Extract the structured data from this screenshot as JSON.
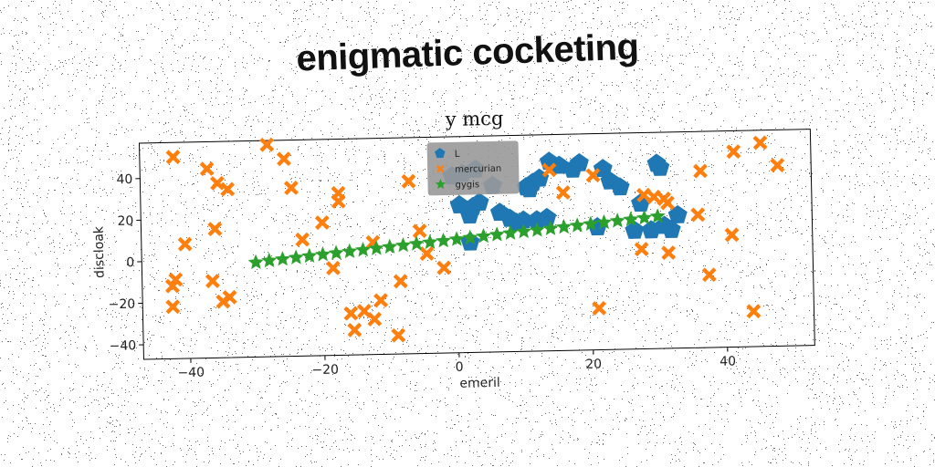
{
  "page": {
    "headline": "enigmatic cocketing"
  },
  "chart_data": {
    "type": "scatter",
    "title": "y mcg",
    "xlabel": "emeril",
    "ylabel": "discloak",
    "xlim": [
      -47,
      53
    ],
    "ylim": [
      -47,
      57
    ],
    "xticks": [
      -40,
      -20,
      0,
      20,
      40
    ],
    "yticks": [
      -40,
      -20,
      0,
      20,
      40
    ],
    "grid": false,
    "legend_position": "top-center",
    "series": [
      {
        "name": "L",
        "marker": "pentagon",
        "color": "#1f77b4",
        "points": [
          [
            -0.5,
            38
          ],
          [
            1,
            39
          ],
          [
            3,
            41
          ],
          [
            5.5,
            33
          ],
          [
            0.5,
            24
          ],
          [
            2.5,
            23
          ],
          [
            3.5,
            25
          ],
          [
            2,
            19
          ],
          [
            6.5,
            20
          ],
          [
            8,
            17
          ],
          [
            9,
            15
          ],
          [
            10,
            16
          ],
          [
            10.5,
            32
          ],
          [
            11,
            31
          ],
          [
            11.5,
            34
          ],
          [
            12.5,
            36
          ],
          [
            14,
            44
          ],
          [
            15.5,
            42
          ],
          [
            17.5,
            40
          ],
          [
            12,
            16
          ],
          [
            13.5,
            17
          ],
          [
            18.5,
            43
          ],
          [
            22,
            40
          ],
          [
            23,
            34
          ],
          [
            24.5,
            31
          ],
          [
            27.5,
            23
          ],
          [
            26.5,
            10
          ],
          [
            29,
            10
          ],
          [
            31,
            12
          ],
          [
            21,
            12
          ],
          [
            33,
            17
          ],
          [
            30,
            42
          ],
          [
            30.5,
            40
          ],
          [
            2,
            6
          ],
          [
            32,
            10
          ]
        ]
      },
      {
        "name": "mercurian",
        "marker": "x",
        "color": "#ff7f0e",
        "points": [
          [
            -42,
            50
          ],
          [
            -37,
            44
          ],
          [
            -35.5,
            37
          ],
          [
            -34,
            34
          ],
          [
            -28,
            55
          ],
          [
            -25.5,
            48
          ],
          [
            -24.5,
            34
          ],
          [
            -23,
            9
          ],
          [
            -40.5,
            8
          ],
          [
            -36,
            15
          ],
          [
            -20,
            17
          ],
          [
            -17.5,
            27
          ],
          [
            -17.5,
            31
          ],
          [
            -12.5,
            7
          ],
          [
            -7,
            36
          ],
          [
            -5.5,
            12
          ],
          [
            -4.5,
            1
          ],
          [
            -2,
            -6
          ],
          [
            -18.5,
            -5
          ],
          [
            -8.5,
            -12
          ],
          [
            -14,
            -26
          ],
          [
            -16,
            -27
          ],
          [
            -15.5,
            -35
          ],
          [
            -12.5,
            -30
          ],
          [
            -11.5,
            -21
          ],
          [
            -9,
            -38
          ],
          [
            -42,
            -9
          ],
          [
            -42.5,
            -12
          ],
          [
            -42.5,
            -22
          ],
          [
            -36.5,
            -10
          ],
          [
            -35,
            -20
          ],
          [
            -34,
            -18
          ],
          [
            14,
            40
          ],
          [
            16,
            29
          ],
          [
            20.5,
            37
          ],
          [
            21,
            -27
          ],
          [
            28,
            27
          ],
          [
            29.5,
            26
          ],
          [
            31,
            25
          ],
          [
            31.5,
            23
          ],
          [
            27.5,
            1
          ],
          [
            31.5,
            -1
          ],
          [
            36,
            17
          ],
          [
            36.5,
            38
          ],
          [
            37.5,
            -12
          ],
          [
            41.5,
            47
          ],
          [
            41,
            7
          ],
          [
            45.5,
            51
          ],
          [
            48,
            40
          ],
          [
            44,
            -30
          ]
        ]
      },
      {
        "name": "gygis",
        "marker": "star",
        "color": "#2ca02c",
        "points": [
          [
            -30,
            -1.5
          ],
          [
            -28,
            -0.8
          ],
          [
            -26,
            -0.2
          ],
          [
            -24,
            0.4
          ],
          [
            -22,
            1.0
          ],
          [
            -20,
            1.6
          ],
          [
            -18,
            2.2
          ],
          [
            -16,
            2.8
          ],
          [
            -14,
            3.4
          ],
          [
            -12,
            4.0
          ],
          [
            -10,
            4.6
          ],
          [
            -8,
            5.2
          ],
          [
            -6,
            5.8
          ],
          [
            -4,
            6.4
          ],
          [
            -2,
            7.0
          ],
          [
            0,
            7.6
          ],
          [
            2,
            8.2
          ],
          [
            4,
            8.8
          ],
          [
            6,
            9.4
          ],
          [
            8,
            10.0
          ],
          [
            10,
            10.6
          ],
          [
            12,
            11.2
          ],
          [
            14,
            11.8
          ],
          [
            16,
            12.4
          ],
          [
            18,
            13.0
          ],
          [
            20,
            13.6
          ],
          [
            22,
            14.2
          ],
          [
            24,
            14.8
          ],
          [
            26,
            15.4
          ],
          [
            28,
            16.0
          ],
          [
            30,
            16.6
          ]
        ]
      }
    ]
  }
}
